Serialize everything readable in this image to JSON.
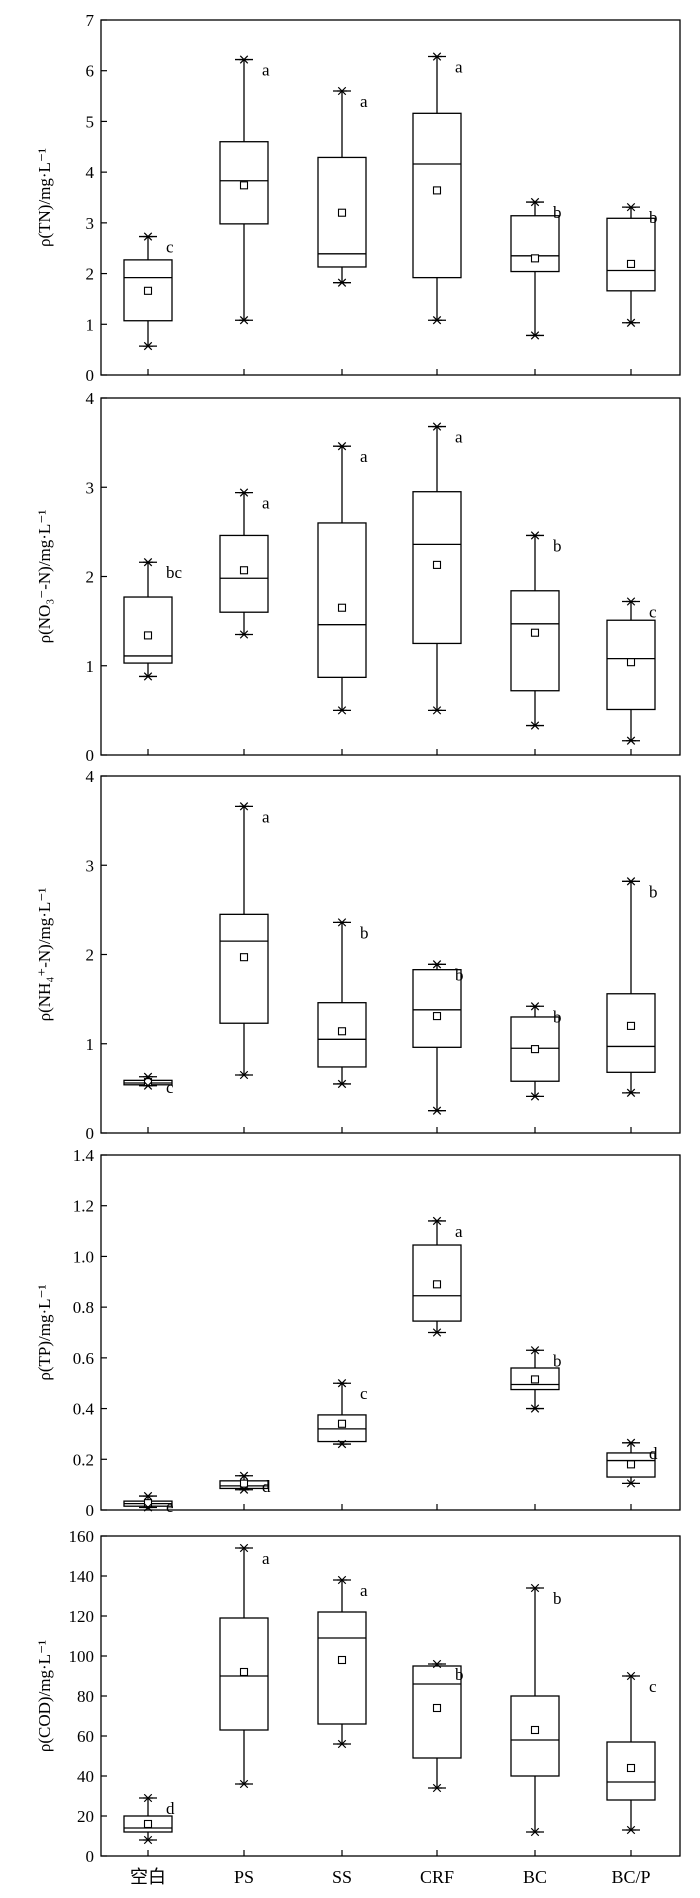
{
  "categories": [
    "空白",
    "PS",
    "SS",
    "CRF",
    "BC",
    "BC/P"
  ],
  "chart_data": [
    {
      "type": "box",
      "ylabel": "ρ(TN)/mg·L⁻¹",
      "ylim": [
        0,
        7
      ],
      "yticks": [
        0,
        1,
        2,
        3,
        4,
        5,
        6,
        7
      ],
      "yticklabels": [
        "0",
        "1",
        "2",
        "3",
        "4",
        "5",
        "6",
        "7"
      ],
      "boxes": [
        {
          "category": "空白",
          "min": 0.57,
          "q1": 1.07,
          "median": 1.92,
          "q3": 2.27,
          "max": 2.73,
          "mean": 1.66,
          "sig": "c"
        },
        {
          "category": "PS",
          "min": 1.08,
          "q1": 2.98,
          "median": 3.83,
          "q3": 4.6,
          "max": 6.22,
          "mean": 3.74,
          "sig": "a"
        },
        {
          "category": "SS",
          "min": 1.82,
          "q1": 2.13,
          "median": 2.39,
          "q3": 4.29,
          "max": 5.6,
          "mean": 3.2,
          "sig": "a"
        },
        {
          "category": "CRF",
          "min": 1.08,
          "q1": 1.92,
          "median": 4.16,
          "q3": 5.16,
          "max": 6.28,
          "mean": 3.64,
          "sig": "a"
        },
        {
          "category": "BC",
          "min": 0.78,
          "q1": 2.04,
          "median": 2.35,
          "q3": 3.14,
          "max": 3.41,
          "mean": 2.3,
          "sig": "b"
        },
        {
          "category": "BC/P",
          "min": 1.03,
          "q1": 1.66,
          "median": 2.06,
          "q3": 3.09,
          "max": 3.31,
          "mean": 2.19,
          "sig": "b"
        }
      ]
    },
    {
      "type": "box",
      "ylabel": "ρ(NO₃⁻-N)/mg·L⁻¹",
      "ylim": [
        0,
        4
      ],
      "yticks": [
        0,
        1,
        2,
        3,
        4
      ],
      "yticklabels": [
        "0",
        "1",
        "2",
        "3",
        "4"
      ],
      "boxes": [
        {
          "category": "空白",
          "min": 0.88,
          "q1": 1.03,
          "median": 1.11,
          "q3": 1.77,
          "max": 2.16,
          "mean": 1.34,
          "sig": "bc"
        },
        {
          "category": "PS",
          "min": 1.35,
          "q1": 1.6,
          "median": 1.98,
          "q3": 2.46,
          "max": 2.94,
          "mean": 2.07,
          "sig": "a"
        },
        {
          "category": "SS",
          "min": 0.5,
          "q1": 0.87,
          "median": 1.46,
          "q3": 2.6,
          "max": 3.46,
          "mean": 1.65,
          "sig": "a"
        },
        {
          "category": "CRF",
          "min": 0.5,
          "q1": 1.25,
          "median": 2.36,
          "q3": 2.95,
          "max": 3.68,
          "mean": 2.13,
          "sig": "a"
        },
        {
          "category": "BC",
          "min": 0.33,
          "q1": 0.72,
          "median": 1.47,
          "q3": 1.84,
          "max": 2.46,
          "mean": 1.37,
          "sig": "b"
        },
        {
          "category": "BC/P",
          "min": 0.16,
          "q1": 0.51,
          "median": 1.08,
          "q3": 1.51,
          "max": 1.72,
          "mean": 1.04,
          "sig": "c"
        }
      ]
    },
    {
      "type": "box",
      "ylabel": "ρ(NH₄⁺-N)/mg·L⁻¹",
      "ylim": [
        0,
        4
      ],
      "yticks": [
        0,
        1,
        2,
        3,
        4
      ],
      "yticklabels": [
        "0",
        "1",
        "2",
        "3",
        "4"
      ],
      "boxes": [
        {
          "category": "空白",
          "min": 0.53,
          "q1": 0.54,
          "median": 0.56,
          "q3": 0.59,
          "max": 0.63,
          "mean": 0.57,
          "sig": "c"
        },
        {
          "category": "PS",
          "min": 0.65,
          "q1": 1.23,
          "median": 2.15,
          "q3": 2.45,
          "max": 3.66,
          "mean": 1.97,
          "sig": "a"
        },
        {
          "category": "SS",
          "min": 0.55,
          "q1": 0.74,
          "median": 1.05,
          "q3": 1.46,
          "max": 2.36,
          "mean": 1.14,
          "sig": "b"
        },
        {
          "category": "CRF",
          "min": 0.25,
          "q1": 0.96,
          "median": 1.38,
          "q3": 1.83,
          "max": 1.89,
          "mean": 1.31,
          "sig": "b"
        },
        {
          "category": "BC",
          "min": 0.41,
          "q1": 0.58,
          "median": 0.95,
          "q3": 1.3,
          "max": 1.42,
          "mean": 0.94,
          "sig": "b"
        },
        {
          "category": "BC/P",
          "min": 0.45,
          "q1": 0.68,
          "median": 0.97,
          "q3": 1.56,
          "max": 2.82,
          "mean": 1.2,
          "sig": "b"
        }
      ]
    },
    {
      "type": "box",
      "ylabel": "ρ(TP)/mg·L⁻¹",
      "ylim": [
        0,
        1.4
      ],
      "yticks": [
        0,
        0.2,
        0.4,
        0.6,
        0.8,
        1.0,
        1.2,
        1.4
      ],
      "yticklabels": [
        "0",
        "0.2",
        "0.4",
        "0.6",
        "0.8",
        "1.0",
        "1.2",
        "1.4"
      ],
      "boxes": [
        {
          "category": "空白",
          "min": 0.01,
          "q1": 0.015,
          "median": 0.025,
          "q3": 0.035,
          "max": 0.055,
          "mean": 0.027,
          "sig": "e"
        },
        {
          "category": "PS",
          "min": 0.08,
          "q1": 0.085,
          "median": 0.095,
          "q3": 0.115,
          "max": 0.135,
          "mean": 0.104,
          "sig": "d"
        },
        {
          "category": "SS",
          "min": 0.26,
          "q1": 0.27,
          "median": 0.32,
          "q3": 0.375,
          "max": 0.5,
          "mean": 0.34,
          "sig": "c"
        },
        {
          "category": "CRF",
          "min": 0.7,
          "q1": 0.745,
          "median": 0.845,
          "q3": 1.045,
          "max": 1.14,
          "mean": 0.89,
          "sig": "a"
        },
        {
          "category": "BC",
          "min": 0.4,
          "q1": 0.475,
          "median": 0.495,
          "q3": 0.56,
          "max": 0.63,
          "mean": 0.515,
          "sig": "b"
        },
        {
          "category": "BC/P",
          "min": 0.105,
          "q1": 0.13,
          "median": 0.195,
          "q3": 0.225,
          "max": 0.265,
          "mean": 0.18,
          "sig": "d"
        }
      ]
    },
    {
      "type": "box",
      "ylabel": "ρ(COD)/mg·L⁻¹",
      "ylim": [
        0,
        160
      ],
      "yticks": [
        0,
        20,
        40,
        60,
        80,
        100,
        120,
        140,
        160
      ],
      "yticklabels": [
        "0",
        "20",
        "40",
        "60",
        "80",
        "100",
        "120",
        "140",
        "160"
      ],
      "boxes": [
        {
          "category": "空白",
          "min": 8,
          "q1": 12,
          "median": 14,
          "q3": 20,
          "max": 29,
          "mean": 16,
          "sig": "d"
        },
        {
          "category": "PS",
          "min": 36,
          "q1": 63,
          "median": 90,
          "q3": 119,
          "max": 154,
          "mean": 92,
          "sig": "a"
        },
        {
          "category": "SS",
          "min": 56,
          "q1": 66,
          "median": 109,
          "q3": 122,
          "max": 138,
          "mean": 98,
          "sig": "a"
        },
        {
          "category": "CRF",
          "min": 34,
          "q1": 49,
          "median": 86,
          "q3": 95,
          "max": 96,
          "mean": 74,
          "sig": "b"
        },
        {
          "category": "BC",
          "min": 12,
          "q1": 40,
          "median": 58,
          "q3": 80,
          "max": 134,
          "mean": 63,
          "sig": "b"
        },
        {
          "category": "BC/P",
          "min": 13,
          "q1": 28,
          "median": 37,
          "q3": 57,
          "max": 90,
          "mean": 44,
          "sig": "c"
        }
      ]
    }
  ]
}
